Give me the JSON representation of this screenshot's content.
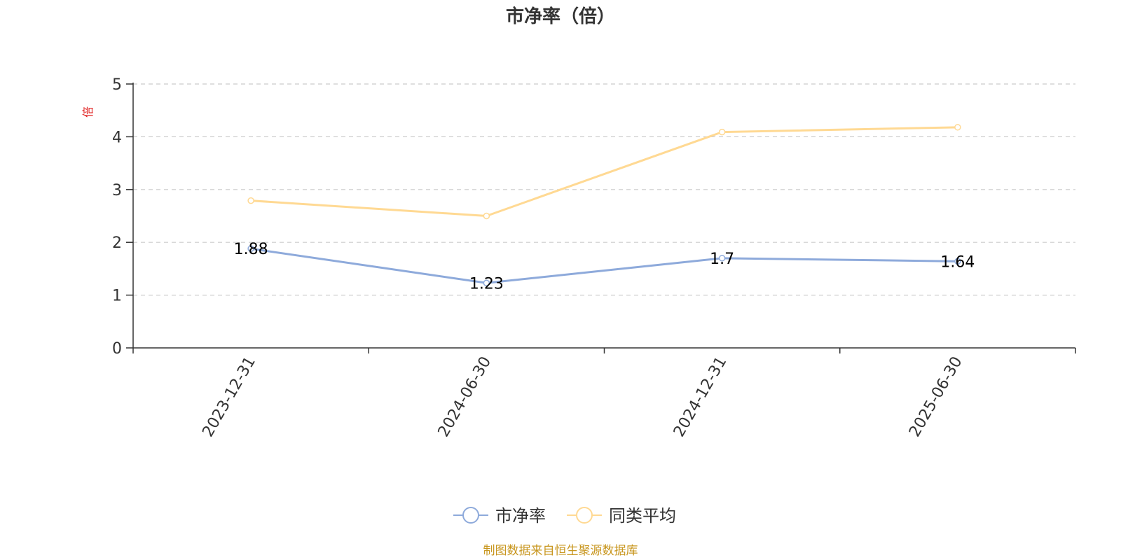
{
  "chart_data": {
    "type": "line",
    "title": "市净率（倍）",
    "ylabel": "倍",
    "categories": [
      "2023-12-31",
      "2024-06-30",
      "2024-12-31",
      "2025-06-30"
    ],
    "ylim": [
      0,
      5
    ],
    "yticks": [
      0,
      1,
      2,
      3,
      4,
      5
    ],
    "grid": true,
    "legend_position": "bottom-center",
    "series": [
      {
        "name": "市净率",
        "values": [
          1.88,
          1.23,
          1.7,
          1.64
        ],
        "color": "#8EAADB",
        "show_labels": true
      },
      {
        "name": "同类平均",
        "values": [
          2.79,
          2.5,
          4.09,
          4.18
        ],
        "color": "#FFD993",
        "show_labels": false
      }
    ]
  },
  "ylabel_color": "#E02020",
  "source_text": "制图数据来自恒生聚源数据库",
  "source_color": "#C8961E"
}
